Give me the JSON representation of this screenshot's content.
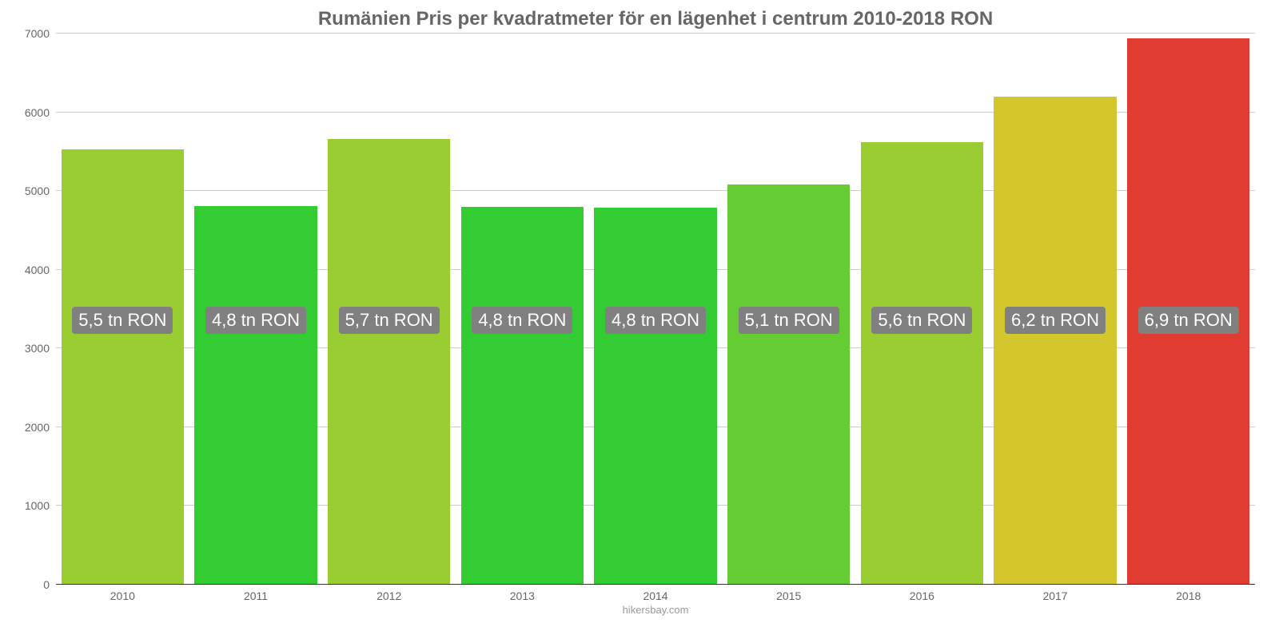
{
  "chart": {
    "type": "bar",
    "title": "Rumänien Pris per kvadratmeter för en lägenhet i centrum 2010-2018 RON",
    "title_fontsize": 24,
    "title_color": "#666666",
    "credit": "hikersbay.com",
    "background_color": "#ffffff",
    "grid_color": "#cccccc",
    "axis_color": "#333333",
    "tick_font_color": "#666666",
    "tick_fontsize": 14,
    "ylim": [
      0,
      7000
    ],
    "yticks": [
      0,
      1000,
      2000,
      3000,
      4000,
      5000,
      6000,
      7000
    ],
    "bar_width_pct": 92,
    "value_label_bg": "#808080",
    "value_label_color": "#ffffff",
    "value_label_fontsize": 22,
    "value_label_y_offset_ratio": 0.43,
    "categories": [
      "2010",
      "2011",
      "2012",
      "2013",
      "2014",
      "2015",
      "2016",
      "2017",
      "2018"
    ],
    "values": [
      5530,
      4810,
      5660,
      4800,
      4790,
      5080,
      5620,
      6200,
      6940
    ],
    "value_labels": [
      "5,5 tn RON",
      "4,8 tn RON",
      "5,7 tn RON",
      "4,8 tn RON",
      "4,8 tn RON",
      "5,1 tn RON",
      "5,6 tn RON",
      "6,2 tn RON",
      "6,9 tn RON"
    ],
    "bar_colors": [
      "#9acd32",
      "#33cc33",
      "#9acd32",
      "#33cc33",
      "#33cc33",
      "#66cc33",
      "#9acd32",
      "#d4c72e",
      "#e03c31"
    ]
  }
}
